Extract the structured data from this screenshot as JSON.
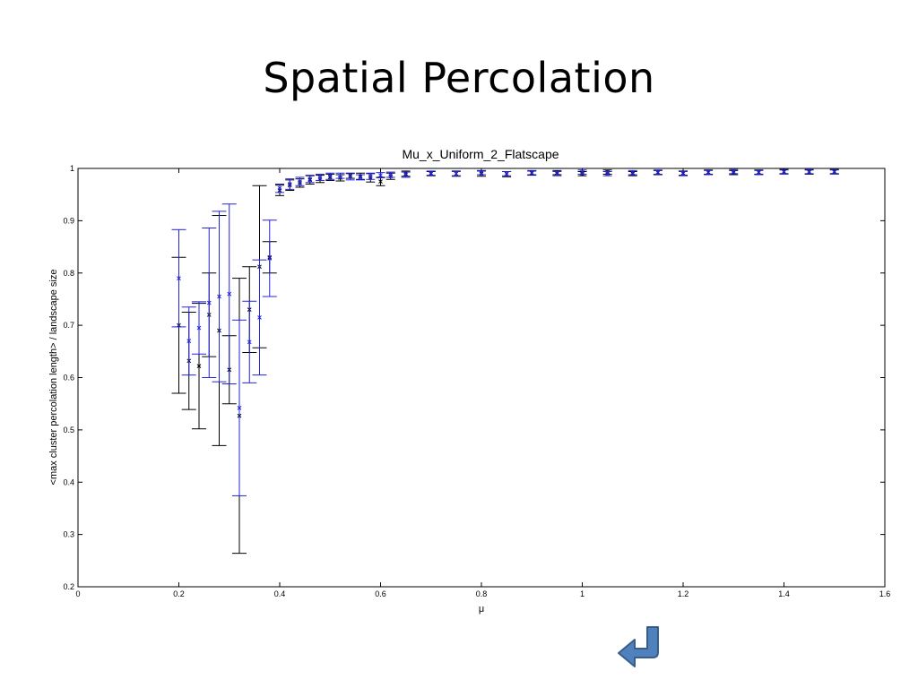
{
  "slide": {
    "title": "Spatial Percolation",
    "return_icon": "return-arrow-icon"
  },
  "colors": {
    "series_black": "#000000",
    "series_blue": "#2222dd",
    "axis": "#000000",
    "button_fill": "#4f81bd",
    "button_stroke": "#385d8a"
  },
  "chart_data": {
    "type": "scatter",
    "title": "Mu_x_Uniform_2_Flatscape",
    "xlabel": "μ",
    "ylabel": "<max cluster percolation length> / landscape size",
    "xlim": [
      0,
      1.6
    ],
    "ylim": [
      0.2,
      1
    ],
    "xticks": [
      0,
      0.2,
      0.4,
      0.6,
      0.8,
      1,
      1.2,
      1.4,
      1.6
    ],
    "xtick_labels": [
      "0",
      "0.2",
      "0.4",
      "0.6",
      "0.8",
      "1",
      "1.2",
      "1.4",
      "1.6"
    ],
    "yticks": [
      0.2,
      0.3,
      0.4,
      0.5,
      0.6,
      0.7,
      0.8,
      0.9,
      1
    ],
    "ytick_labels": [
      "0.2",
      "0.3",
      "0.4",
      "0.5",
      "0.6",
      "0.7",
      "0.8",
      "0.9",
      "1"
    ],
    "grid": false,
    "legend": "none",
    "marker": "x",
    "series": [
      {
        "color": "#000000",
        "points": [
          {
            "x": 0.2,
            "y": 0.7,
            "err": 0.13
          },
          {
            "x": 0.22,
            "y": 0.632,
            "err": 0.093
          },
          {
            "x": 0.24,
            "y": 0.622,
            "err": 0.12
          },
          {
            "x": 0.26,
            "y": 0.72,
            "err": 0.08
          },
          {
            "x": 0.28,
            "y": 0.69,
            "err": 0.22
          },
          {
            "x": 0.3,
            "y": 0.615,
            "err": 0.065
          },
          {
            "x": 0.32,
            "y": 0.527,
            "err": 0.263
          },
          {
            "x": 0.34,
            "y": 0.73,
            "err": 0.082
          },
          {
            "x": 0.36,
            "y": 0.812,
            "err": 0.155
          },
          {
            "x": 0.38,
            "y": 0.83,
            "err": 0.03
          },
          {
            "x": 0.4,
            "y": 0.958,
            "err": 0.01
          },
          {
            "x": 0.42,
            "y": 0.968,
            "err": 0.01
          },
          {
            "x": 0.44,
            "y": 0.972,
            "err": 0.008
          },
          {
            "x": 0.46,
            "y": 0.978,
            "err": 0.008
          },
          {
            "x": 0.48,
            "y": 0.98,
            "err": 0.007
          },
          {
            "x": 0.5,
            "y": 0.983,
            "err": 0.006
          },
          {
            "x": 0.52,
            "y": 0.982,
            "err": 0.006
          },
          {
            "x": 0.54,
            "y": 0.986,
            "err": 0.005
          },
          {
            "x": 0.56,
            "y": 0.985,
            "err": 0.006
          },
          {
            "x": 0.58,
            "y": 0.982,
            "err": 0.008
          },
          {
            "x": 0.6,
            "y": 0.975,
            "err": 0.008
          },
          {
            "x": 0.62,
            "y": 0.985,
            "err": 0.006
          },
          {
            "x": 0.65,
            "y": 0.99,
            "err": 0.005
          },
          {
            "x": 0.7,
            "y": 0.99,
            "err": 0.004
          },
          {
            "x": 0.75,
            "y": 0.99,
            "err": 0.005
          },
          {
            "x": 0.8,
            "y": 0.99,
            "err": 0.005
          },
          {
            "x": 0.85,
            "y": 0.989,
            "err": 0.005
          },
          {
            "x": 0.9,
            "y": 0.991,
            "err": 0.004
          },
          {
            "x": 0.95,
            "y": 0.992,
            "err": 0.004
          },
          {
            "x": 1.0,
            "y": 0.99,
            "err": 0.004
          },
          {
            "x": 1.05,
            "y": 0.993,
            "err": 0.004
          },
          {
            "x": 1.1,
            "y": 0.99,
            "err": 0.004
          },
          {
            "x": 1.15,
            "y": 0.992,
            "err": 0.004
          },
          {
            "x": 1.2,
            "y": 0.991,
            "err": 0.004
          },
          {
            "x": 1.25,
            "y": 0.993,
            "err": 0.004
          },
          {
            "x": 1.3,
            "y": 0.992,
            "err": 0.004
          },
          {
            "x": 1.35,
            "y": 0.993,
            "err": 0.004
          },
          {
            "x": 1.4,
            "y": 0.994,
            "err": 0.004
          },
          {
            "x": 1.45,
            "y": 0.993,
            "err": 0.004
          },
          {
            "x": 1.5,
            "y": 0.994,
            "err": 0.004
          }
        ]
      },
      {
        "color": "#2222dd",
        "points": [
          {
            "x": 0.2,
            "y": 0.79,
            "err": 0.093
          },
          {
            "x": 0.22,
            "y": 0.67,
            "err": 0.065
          },
          {
            "x": 0.24,
            "y": 0.695,
            "err": 0.05
          },
          {
            "x": 0.26,
            "y": 0.743,
            "err": 0.143
          },
          {
            "x": 0.28,
            "y": 0.755,
            "err": 0.163
          },
          {
            "x": 0.3,
            "y": 0.76,
            "err": 0.172
          },
          {
            "x": 0.32,
            "y": 0.542,
            "err": 0.168
          },
          {
            "x": 0.34,
            "y": 0.668,
            "err": 0.078
          },
          {
            "x": 0.36,
            "y": 0.715,
            "err": 0.11
          },
          {
            "x": 0.38,
            "y": 0.828,
            "err": 0.073
          },
          {
            "x": 0.4,
            "y": 0.962,
            "err": 0.008
          },
          {
            "x": 0.42,
            "y": 0.97,
            "err": 0.01
          },
          {
            "x": 0.44,
            "y": 0.975,
            "err": 0.008
          },
          {
            "x": 0.46,
            "y": 0.98,
            "err": 0.007
          },
          {
            "x": 0.48,
            "y": 0.983,
            "err": 0.006
          },
          {
            "x": 0.5,
            "y": 0.985,
            "err": 0.006
          },
          {
            "x": 0.52,
            "y": 0.986,
            "err": 0.005
          },
          {
            "x": 0.54,
            "y": 0.984,
            "err": 0.006
          },
          {
            "x": 0.56,
            "y": 0.983,
            "err": 0.005
          },
          {
            "x": 0.58,
            "y": 0.985,
            "err": 0.006
          },
          {
            "x": 0.6,
            "y": 0.987,
            "err": 0.005
          },
          {
            "x": 0.62,
            "y": 0.988,
            "err": 0.005
          },
          {
            "x": 0.65,
            "y": 0.988,
            "err": 0.005
          },
          {
            "x": 0.7,
            "y": 0.991,
            "err": 0.004
          },
          {
            "x": 0.75,
            "y": 0.99,
            "err": 0.004
          },
          {
            "x": 0.8,
            "y": 0.992,
            "err": 0.004
          },
          {
            "x": 0.85,
            "y": 0.99,
            "err": 0.004
          },
          {
            "x": 0.9,
            "y": 0.992,
            "err": 0.004
          },
          {
            "x": 0.95,
            "y": 0.99,
            "err": 0.004
          },
          {
            "x": 1.0,
            "y": 0.993,
            "err": 0.004
          },
          {
            "x": 1.05,
            "y": 0.99,
            "err": 0.004
          },
          {
            "x": 1.1,
            "y": 0.992,
            "err": 0.004
          },
          {
            "x": 1.15,
            "y": 0.993,
            "err": 0.004
          },
          {
            "x": 1.2,
            "y": 0.99,
            "err": 0.004
          },
          {
            "x": 1.25,
            "y": 0.992,
            "err": 0.004
          },
          {
            "x": 1.3,
            "y": 0.994,
            "err": 0.004
          },
          {
            "x": 1.35,
            "y": 0.992,
            "err": 0.004
          },
          {
            "x": 1.4,
            "y": 0.993,
            "err": 0.004
          },
          {
            "x": 1.45,
            "y": 0.994,
            "err": 0.004
          },
          {
            "x": 1.5,
            "y": 0.993,
            "err": 0.004
          }
        ]
      }
    ]
  }
}
